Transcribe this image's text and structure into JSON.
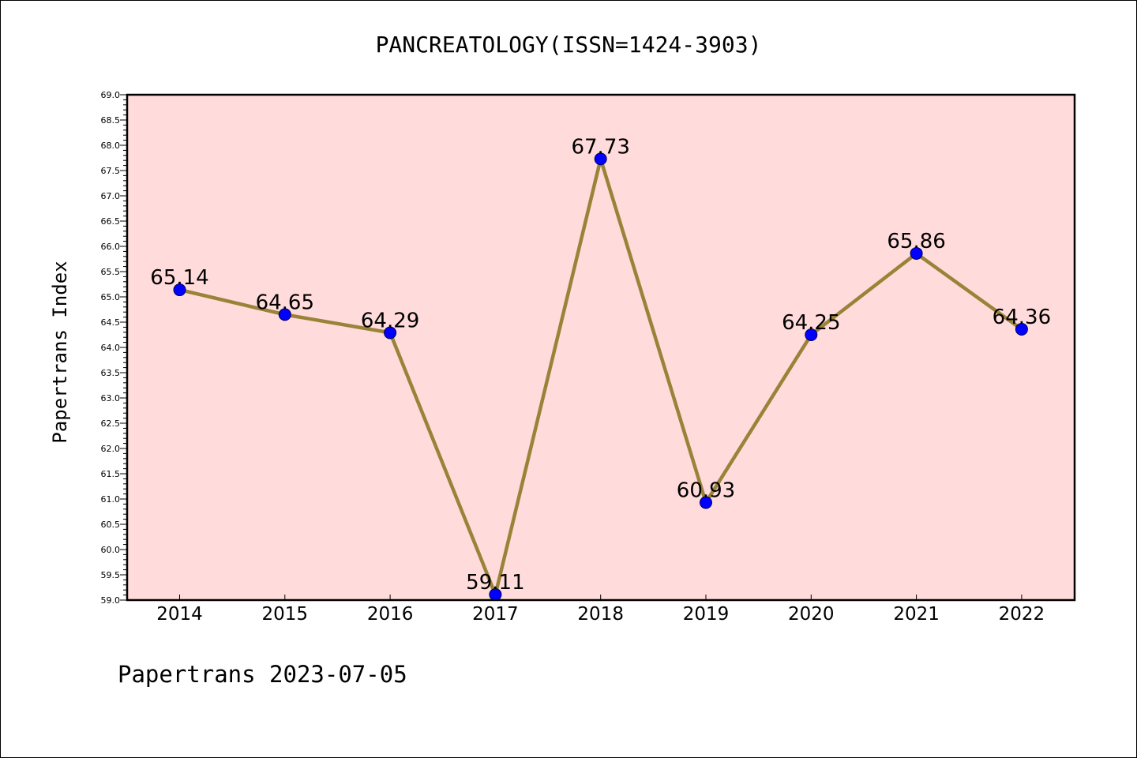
{
  "chart_data": {
    "type": "line",
    "title": "PANCREATOLOGY(ISSN=1424-3903)",
    "xlabel": "",
    "ylabel": "Papertrans Index",
    "categories": [
      "2014",
      "2015",
      "2016",
      "2017",
      "2018",
      "2019",
      "2020",
      "2021",
      "2022"
    ],
    "series": [
      {
        "values": [
          65.14,
          64.65,
          64.29,
          59.11,
          67.73,
          60.93,
          64.25,
          65.86,
          64.36
        ],
        "data_labels": [
          "65.14",
          "64.65",
          "64.29",
          "59.11",
          "67.73",
          "60.93",
          "64.25",
          "65.86",
          "64.36"
        ]
      }
    ],
    "ylim": [
      59.0,
      69.0
    ],
    "yticks": [
      "59.0",
      "59.5",
      "60.0",
      "60.5",
      "61.0",
      "61.5",
      "62.0",
      "62.5",
      "63.0",
      "63.5",
      "64.0",
      "64.5",
      "65.0",
      "65.5",
      "66.0",
      "66.5",
      "67.0",
      "67.5",
      "68.0",
      "68.5",
      "69.0"
    ],
    "grid": false,
    "legend": "none",
    "colors": {
      "plot_background": "#ffdcdb",
      "line": "#9a8339",
      "marker": "#0000ff"
    }
  },
  "footer": {
    "text": "Papertrans 2023-07-05"
  }
}
